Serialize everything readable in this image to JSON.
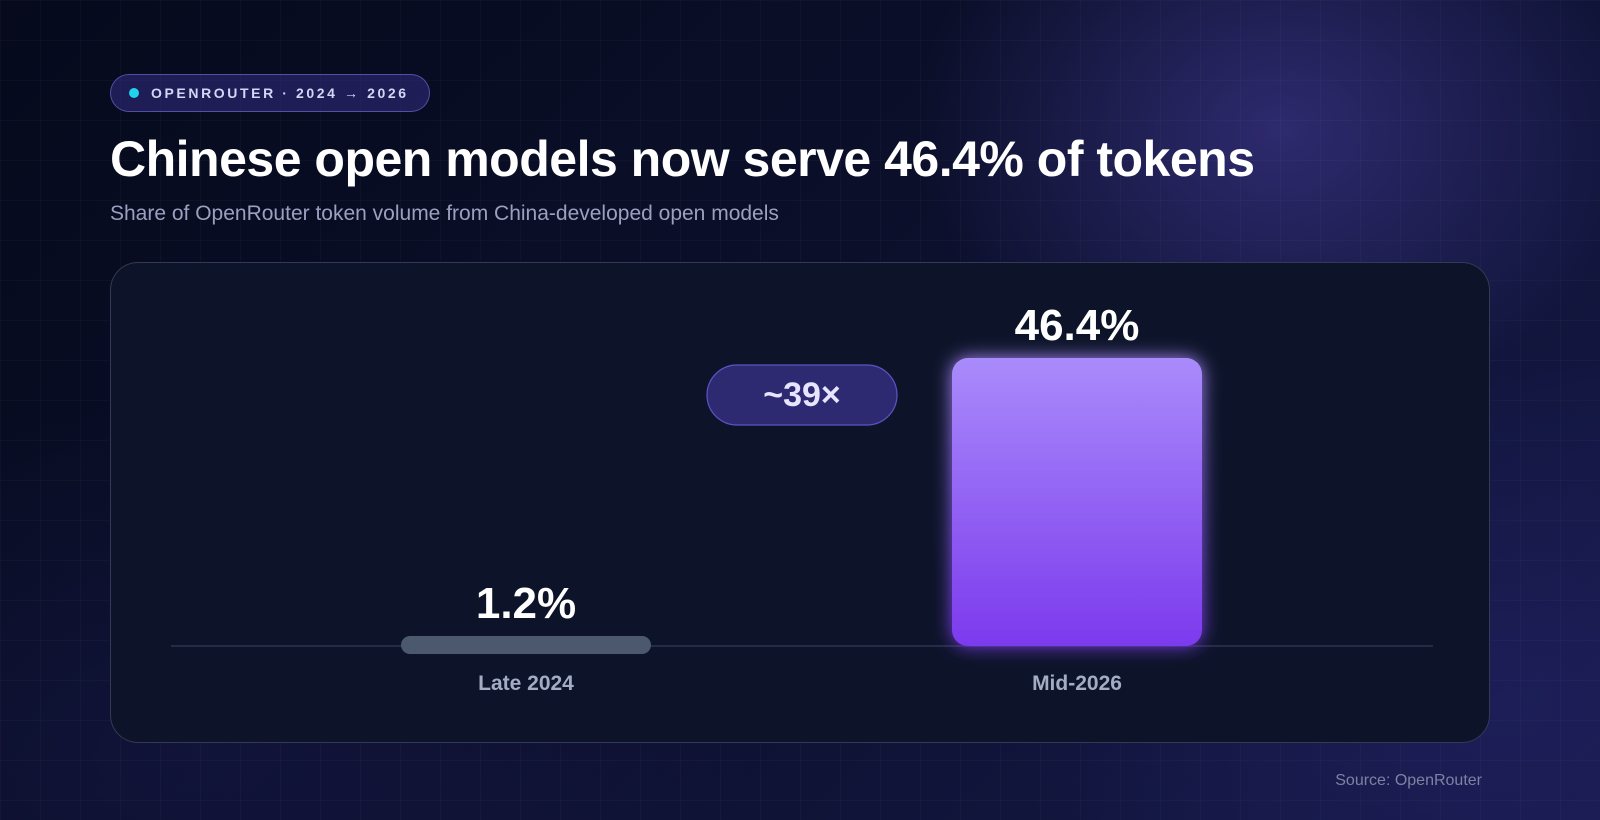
{
  "tag": {
    "icon": "dot-icon",
    "label": "OPENROUTER · 2024 → 2026"
  },
  "title": "Chinese open models now serve 46.4% of tokens",
  "subtitle": "Share of OpenRouter token volume from China-developed open models",
  "multiplier_badge": "~39×",
  "source": "Source: OpenRouter",
  "colors": {
    "accent": "#22d3ee",
    "bar_small": "#4b586d",
    "bar_large_top": "#a98bfb",
    "bar_large_bottom": "#7c3aed"
  },
  "chart_data": {
    "type": "bar",
    "categories": [
      "Late 2024",
      "Mid-2026"
    ],
    "values": [
      1.2,
      46.4
    ],
    "value_labels": [
      "1.2%",
      "46.4%"
    ],
    "unit": "%",
    "ylim": [
      0,
      46.4
    ],
    "grid": false,
    "legend": "none"
  }
}
